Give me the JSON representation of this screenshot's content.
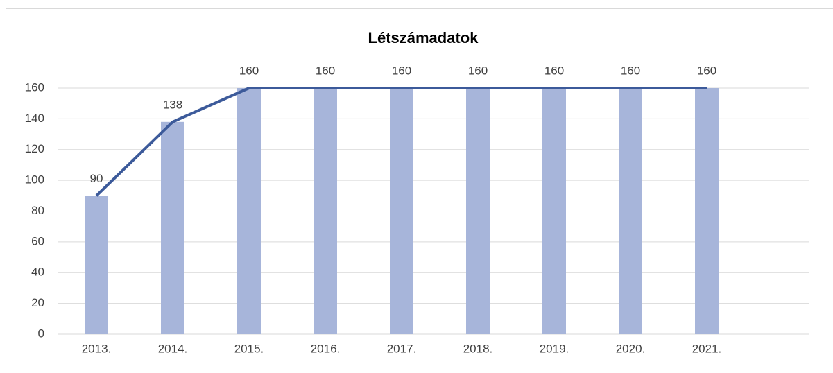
{
  "chart_data": {
    "type": "combo",
    "title": "Létszámadatok",
    "categories": [
      "2013.",
      "2014.",
      "2015.",
      "2016.",
      "2017.",
      "2018.",
      "2019.",
      "2020.",
      "2021."
    ],
    "series": [
      {
        "type": "bar",
        "color": "#a7b5da",
        "values": [
          90,
          138,
          160,
          160,
          160,
          160,
          160,
          160,
          160
        ]
      },
      {
        "type": "line",
        "color": "#3c5a9a",
        "values": [
          90,
          138,
          160,
          160,
          160,
          160,
          160,
          160,
          160
        ],
        "data_labels": true
      }
    ],
    "ylim": [
      0,
      160
    ],
    "yticks": [
      0,
      20,
      40,
      60,
      80,
      100,
      120,
      140,
      160
    ],
    "grid": true
  }
}
